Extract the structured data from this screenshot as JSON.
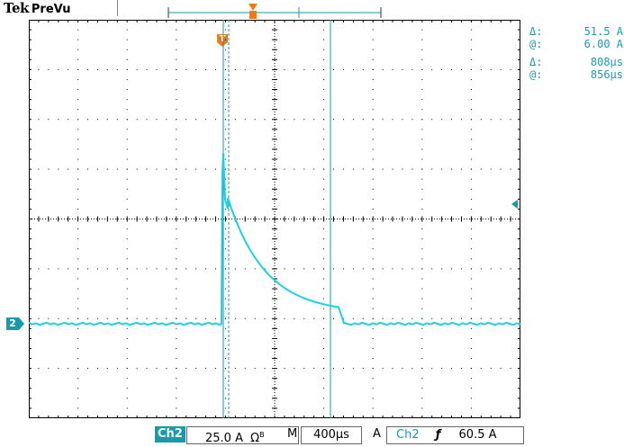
{
  "header": {
    "brand": "Tek",
    "mode": "PreVu"
  },
  "marker": {
    "channel_number": "2",
    "trigger_label": "T"
  },
  "readouts": [
    {
      "symbol": "Δ:",
      "value": "51.5 A"
    },
    {
      "symbol": "@:",
      "value": "6.00 A"
    },
    {
      "symbol": "Δ:",
      "value": "808μs"
    },
    {
      "symbol": "@:",
      "value": "856μs"
    }
  ],
  "status": {
    "channel": "Ch2",
    "scale": "25.0 A",
    "coupling_symbol": "Ω",
    "bw_symbol": "B",
    "timebase_prefix": "M",
    "timebase": "400μs",
    "acq_mode": "A",
    "trigger_source": "Ch2",
    "trigger_slope": "ƒ",
    "trigger_level": "60.5 A"
  },
  "colors": {
    "trace": "#1fd0e0",
    "cursor": "#1a9aa8",
    "trigger_marker": "#f07a18",
    "grid": "#000000"
  }
}
